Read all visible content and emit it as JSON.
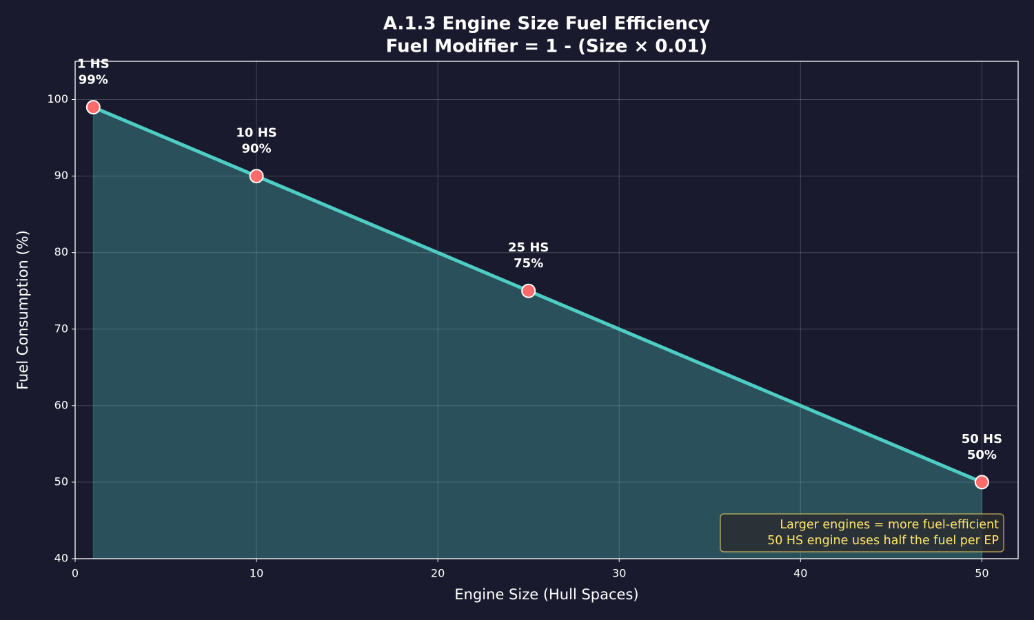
{
  "chart_data": {
    "type": "line",
    "title": "A.1.3 Engine Size Fuel Efficiency",
    "subtitle": "Fuel Modifier = 1 - (Size × 0.01)",
    "x_label": "Engine Size (Hull Spaces)",
    "y_label": "Fuel Consumption (%)",
    "x": [
      1,
      10,
      25,
      50
    ],
    "series": [
      {
        "name": "Fuel Consumption",
        "color": "#4ecdc4",
        "marker_color": "#ff6b6b",
        "values": [
          99,
          90,
          75,
          50
        ],
        "x_labels": [
          "1 HS",
          "10 HS",
          "25 HS",
          "50 HS"
        ],
        "value_labels": [
          "99%",
          "90%",
          "75%",
          "50%"
        ]
      }
    ],
    "fill": true,
    "xlim": [
      0,
      52
    ],
    "ylim": [
      40,
      105
    ],
    "xticks": [
      0,
      10,
      20,
      30,
      40,
      50
    ],
    "yticks": [
      40,
      50,
      60,
      70,
      80,
      90,
      100
    ],
    "grid": true,
    "annotation": [
      "Larger engines = more fuel-efficient",
      "50 HS engine uses half the fuel per EP"
    ],
    "annotation_color": "#ffe66d"
  }
}
